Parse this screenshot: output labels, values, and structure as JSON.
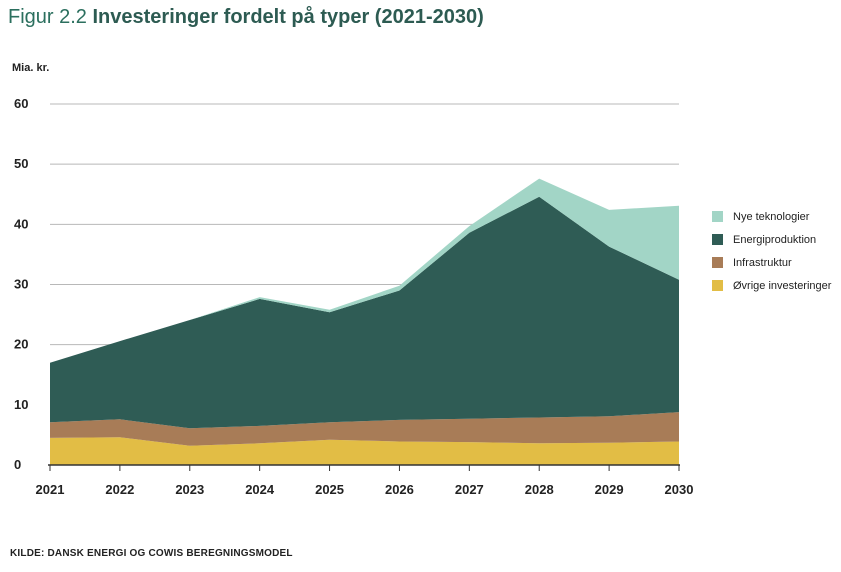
{
  "figure_label": "Figur 2.2",
  "title": "Investeringer fordelt på typer (2021-2030)",
  "source": "KILDE: DANSK ENERGI OG COWIS BEREGNINGSMODEL",
  "chart_data": {
    "type": "area",
    "stacked": true,
    "title": "Investeringer fordelt på typer (2021-2030)",
    "xlabel": "",
    "ylabel": "Mia. kr.",
    "ylim": [
      0,
      60
    ],
    "yticks": [
      "0",
      "10",
      "20",
      "30",
      "40",
      "50",
      "60"
    ],
    "categories": [
      "2021",
      "2022",
      "2023",
      "2024",
      "2025",
      "2026",
      "2027",
      "2028",
      "2029",
      "2030"
    ],
    "grid": true,
    "legend_position": "right",
    "series": [
      {
        "name": "Øvrige investeringer",
        "color": "#e2bd45",
        "values": [
          4.5,
          4.6,
          3.2,
          3.6,
          4.2,
          3.9,
          3.8,
          3.6,
          3.7,
          3.9
        ]
      },
      {
        "name": "Infrastruktur",
        "color": "#a87c57",
        "values": [
          2.6,
          3.0,
          2.9,
          2.9,
          2.9,
          3.6,
          3.9,
          4.3,
          4.4,
          4.9
        ]
      },
      {
        "name": "Energiproduktion",
        "color": "#2f5c55",
        "values": [
          9.9,
          13.0,
          18.0,
          21.1,
          18.3,
          21.5,
          30.9,
          36.7,
          28.2,
          22.0
        ]
      },
      {
        "name": "Nye teknologier",
        "color": "#a2d5c6",
        "values": [
          0.0,
          0.0,
          0.0,
          0.3,
          0.4,
          0.8,
          1.1,
          3.0,
          6.1,
          12.3
        ]
      }
    ]
  }
}
